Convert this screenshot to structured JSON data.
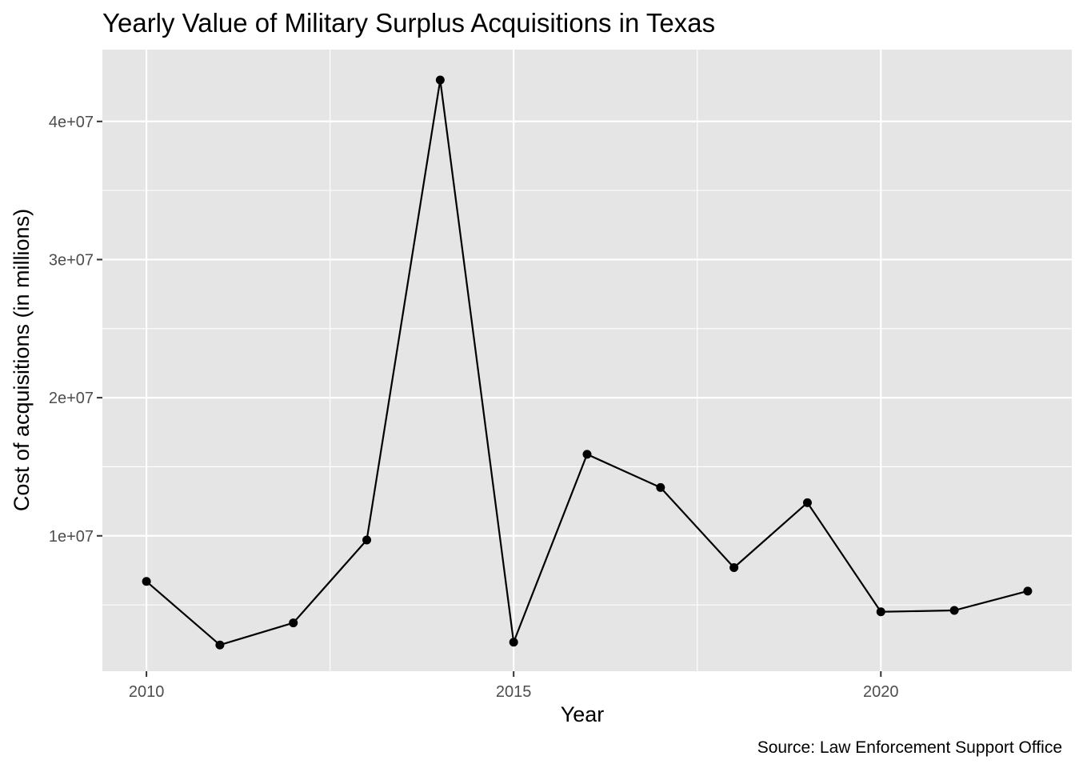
{
  "chart_data": {
    "type": "line",
    "title": "Yearly Value of Military Surplus Acquisitions in Texas",
    "xlabel": "Year",
    "ylabel": "Cost of acquisitions (in millions)",
    "caption": "Source: Law Enforcement Support Office",
    "x": [
      2010,
      2011,
      2012,
      2013,
      2014,
      2015,
      2016,
      2017,
      2018,
      2019,
      2020,
      2021,
      2022
    ],
    "values": [
      6700000,
      2100000,
      3700000,
      9700000,
      43000000,
      2300000,
      15900000,
      13500000,
      7700000,
      12400000,
      4500000,
      4600000,
      6000000
    ],
    "xlim": [
      2009.4,
      2022.6
    ],
    "ylim": [
      200000,
      45200000
    ],
    "x_ticks": [
      2010,
      2015,
      2020
    ],
    "x_tick_labels": [
      "2010",
      "2015",
      "2020"
    ],
    "y_ticks": [
      10000000,
      20000000,
      30000000,
      40000000
    ],
    "y_tick_labels": [
      "1e+07",
      "2e+07",
      "3e+07",
      "4e+07"
    ],
    "grid": true,
    "legend": "none",
    "colors": {
      "panel": "#e5e5e5",
      "grid": "#ffffff",
      "line": "#000000",
      "point": "#000000"
    }
  }
}
